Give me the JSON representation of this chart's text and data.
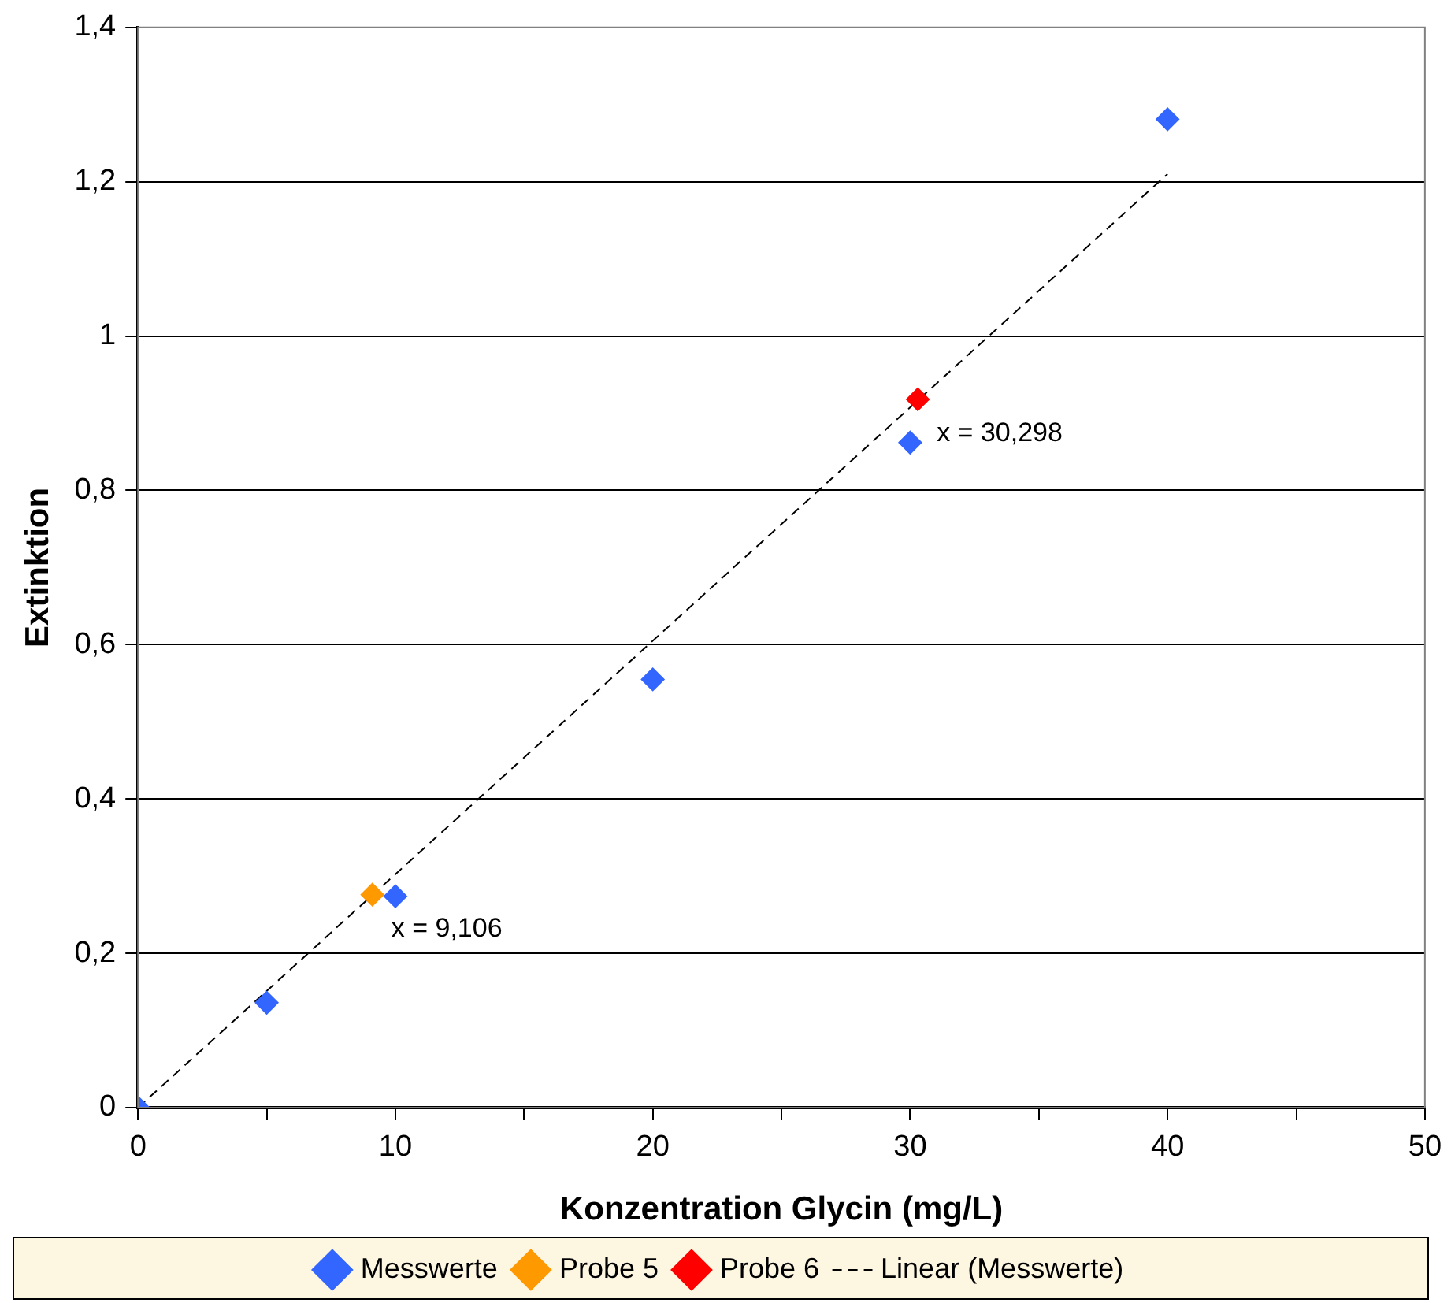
{
  "chart_data": {
    "type": "scatter",
    "xlabel": "Konzentration Glycin (mg/L)",
    "ylabel": "Extinktion",
    "xlim": [
      0,
      50
    ],
    "xticks": [
      0,
      10,
      20,
      30,
      40,
      50
    ],
    "ylim": [
      0,
      1.4
    ],
    "yticks": [
      0,
      {
        "value": 0.2,
        "label": "0,2"
      },
      {
        "value": 0.4,
        "label": "0,4"
      },
      {
        "value": 0.6,
        "label": "0,6"
      },
      {
        "value": 0.8,
        "label": "0,8"
      },
      1,
      {
        "value": 1.2,
        "label": "1,2"
      },
      {
        "value": 1.4,
        "label": "1,4"
      }
    ],
    "grid": "y",
    "legend": "bottom",
    "marker": "diamond",
    "series": [
      {
        "name": "Messwerte",
        "color": "#3366ff",
        "x": [
          0,
          5,
          10,
          20,
          30,
          40
        ],
        "values": [
          0,
          0.136,
          0.274,
          0.555,
          0.862,
          1.281
        ]
      },
      {
        "name": "Probe 5",
        "color": "#ff9900",
        "x": [
          9.106
        ],
        "values": [
          0.276
        ]
      },
      {
        "name": "Probe 6",
        "color": "#ff0000",
        "x": [
          30.298
        ],
        "values": [
          0.918
        ]
      },
      {
        "name": "Linear (Messwerte)",
        "type": "line",
        "color": "#000000",
        "line_style": "dashed",
        "marker": "none",
        "x": [
          0,
          40
        ],
        "values": [
          0,
          1.21
        ]
      }
    ],
    "annotations": [
      {
        "text": "x = 9,106",
        "x": 9.106,
        "y": 0.276
      },
      {
        "text": "x = 30,298",
        "x": 30.298,
        "y": 0.918
      }
    ]
  }
}
